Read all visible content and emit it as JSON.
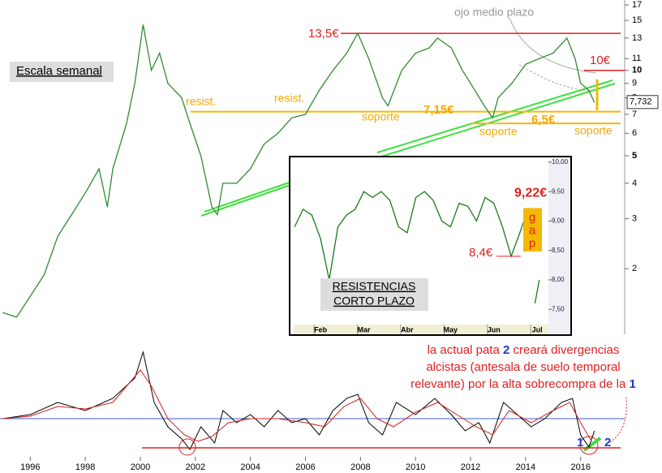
{
  "chart_data": {
    "type": "line",
    "scale": "log",
    "color": "#2e8b2e",
    "x": [
      1995.0,
      1995.5,
      1996.0,
      1996.5,
      1997.0,
      1997.5,
      1998.0,
      1998.5,
      1998.8,
      1999.0,
      1999.5,
      1999.8,
      2000.1,
      2000.4,
      2000.7,
      2001.0,
      2001.5,
      2001.8,
      2002.2,
      2002.6,
      2002.8,
      2003.0,
      2003.5,
      2004.0,
      2004.5,
      2005.0,
      2005.5,
      2006.0,
      2006.5,
      2007.0,
      2007.5,
      2007.9,
      2008.3,
      2008.8,
      2009.0,
      2009.5,
      2010.0,
      2010.5,
      2010.8,
      2011.3,
      2011.7,
      2012.0,
      2012.5,
      2012.8,
      2013.0,
      2013.5,
      2014.0,
      2014.5,
      2015.0,
      2015.5,
      2015.8,
      2016.0,
      2016.3,
      2016.5
    ],
    "values": [
      1.4,
      1.35,
      1.6,
      1.9,
      2.6,
      3.1,
      3.7,
      4.5,
      3.3,
      4.5,
      6.5,
      9,
      14.5,
      10,
      11.5,
      9,
      8,
      6.5,
      5,
      3.3,
      3.1,
      4,
      4,
      4.5,
      5.5,
      6,
      6.8,
      7,
      8.5,
      10,
      11.5,
      13.5,
      11,
      8,
      7.5,
      10,
      11.5,
      12,
      13,
      12,
      10,
      9,
      7.5,
      6.8,
      8,
      9,
      10.5,
      11,
      11.5,
      13,
      11,
      9,
      8.5,
      7.7
    ],
    "xlim": [
      1994.9,
      2017.6
    ],
    "ylim": [
      1.23,
      17.7
    ],
    "xticks": [
      1996,
      1998,
      2000,
      2002,
      2004,
      2006,
      2008,
      2010,
      2012,
      2014,
      2016
    ],
    "yticks": [
      2,
      3,
      4,
      5,
      6,
      7,
      8,
      9,
      10,
      11,
      13,
      15,
      17
    ],
    "last_price": {
      "value": 7.732,
      "label": "7,732"
    },
    "levels": [
      {
        "value": 13.5,
        "label": "13,5€",
        "color": "#e02020"
      },
      {
        "value": 10,
        "label": "10€",
        "color": "#e02020"
      },
      {
        "value": 7.15,
        "label": "7,15€",
        "color": "#f5b800"
      },
      {
        "value": 6.5,
        "label": "6,5€",
        "color": "#f5b800"
      }
    ],
    "annotations": [
      "Escala semanal",
      "ojo medio plazo",
      "resist.",
      "resist.",
      "soporte",
      "soporte",
      "soporte"
    ],
    "inset": {
      "type": "line",
      "title": [
        "RESISTENCIAS",
        "CORTO PLAZO"
      ],
      "x": [
        0.4,
        0.6,
        0.8,
        1.0,
        1.2,
        1.4,
        1.6,
        1.8,
        2.0,
        2.2,
        2.4,
        2.6,
        2.8,
        3.0,
        3.2,
        3.4,
        3.6,
        3.8,
        4.0,
        4.2,
        4.4,
        4.6,
        4.8,
        5.0,
        5.2,
        5.4,
        5.6,
        5.8,
        5.85,
        5.95,
        6.05
      ],
      "values": [
        8.9,
        9.2,
        9.1,
        8.7,
        8.0,
        8.9,
        9.1,
        9.2,
        9.5,
        9.4,
        9.5,
        9.35,
        8.9,
        8.8,
        9.4,
        9.5,
        9.35,
        9.0,
        8.9,
        9.3,
        9.25,
        9.0,
        9.4,
        9.3,
        8.9,
        8.4,
        8.8,
        9.22,
        null,
        7.6,
        8.0
      ],
      "xlim": [
        0.38,
        6.26
      ],
      "ylim": [
        7.24,
        10.04
      ],
      "xticks": [
        {
          "value": 1,
          "label": "Feb"
        },
        {
          "value": 2,
          "label": "Mar"
        },
        {
          "value": 3,
          "label": "Abr"
        },
        {
          "value": 4,
          "label": "May"
        },
        {
          "value": 5,
          "label": "Jun"
        },
        {
          "value": 6,
          "label": "Jul"
        }
      ],
      "yticks": [
        {
          "value": 10,
          "label": "10,00"
        },
        {
          "value": 9.5,
          "label": "9,50"
        },
        {
          "value": 9,
          "label": "9,00"
        },
        {
          "value": 8.5,
          "label": "8,50"
        },
        {
          "value": 8,
          "label": "8,00"
        },
        {
          "value": 7.5,
          "label": "7,50"
        }
      ],
      "levels": [
        {
          "value": 9.22,
          "label": "9,22€"
        },
        {
          "value": 8.4,
          "label": "8,4€"
        }
      ],
      "gap_label": [
        "g",
        "a",
        "p"
      ]
    },
    "oscillator": {
      "type": "line",
      "ylim": [
        -44,
        86
      ],
      "support": -36,
      "series": [
        {
          "name": "fast",
          "color": "#000000",
          "x": [
            1995,
            1996,
            1997,
            1998,
            1999,
            1999.8,
            2000.1,
            2000.5,
            2001,
            2001.5,
            2001.8,
            2002.2,
            2002.7,
            2003,
            2003.5,
            2004,
            2004.5,
            2005,
            2005.5,
            2006,
            2006.5,
            2007,
            2007.5,
            2007.9,
            2008.3,
            2008.8,
            2009.3,
            2010,
            2010.7,
            2011.3,
            2011.8,
            2012.3,
            2012.7,
            2013.2,
            2013.7,
            2014.2,
            2014.7,
            2015.3,
            2015.7,
            2016,
            2016.3,
            2016.5
          ],
          "values": [
            0,
            5,
            20,
            10,
            25,
            50,
            82,
            20,
            -10,
            -25,
            -38,
            -10,
            -30,
            10,
            -5,
            5,
            -10,
            10,
            -5,
            0,
            -20,
            10,
            25,
            30,
            -5,
            -20,
            20,
            5,
            25,
            5,
            -15,
            -5,
            -30,
            20,
            5,
            -10,
            0,
            20,
            25,
            -20,
            -35,
            -15
          ]
        },
        {
          "name": "slow",
          "color": "#d02020",
          "x": [
            1995,
            1996,
            1997,
            1998,
            1999,
            2000,
            2000.4,
            2001,
            2001.6,
            2002.1,
            2002.6,
            2003.2,
            2004,
            2005,
            2006,
            2006.7,
            2007.4,
            2008,
            2008.6,
            2009.2,
            2010,
            2010.8,
            2011.5,
            2012.2,
            2012.8,
            2013.4,
            2014.2,
            2015,
            2015.6,
            2016,
            2016.4
          ],
          "values": [
            0,
            3,
            15,
            12,
            20,
            60,
            40,
            0,
            -20,
            -28,
            -22,
            -5,
            0,
            0,
            -5,
            -10,
            15,
            25,
            0,
            -10,
            8,
            20,
            5,
            -10,
            -20,
            10,
            -5,
            10,
            20,
            -5,
            -28
          ]
        }
      ],
      "marks": [
        "1",
        "2"
      ]
    },
    "note": [
      [
        "la actual pata ",
        "2",
        " creará divergencias"
      ],
      [
        "alcistas (antesala de suelo temporal"
      ],
      [
        "relevante) por la alta sobrecompra de la ",
        "1"
      ]
    ]
  }
}
